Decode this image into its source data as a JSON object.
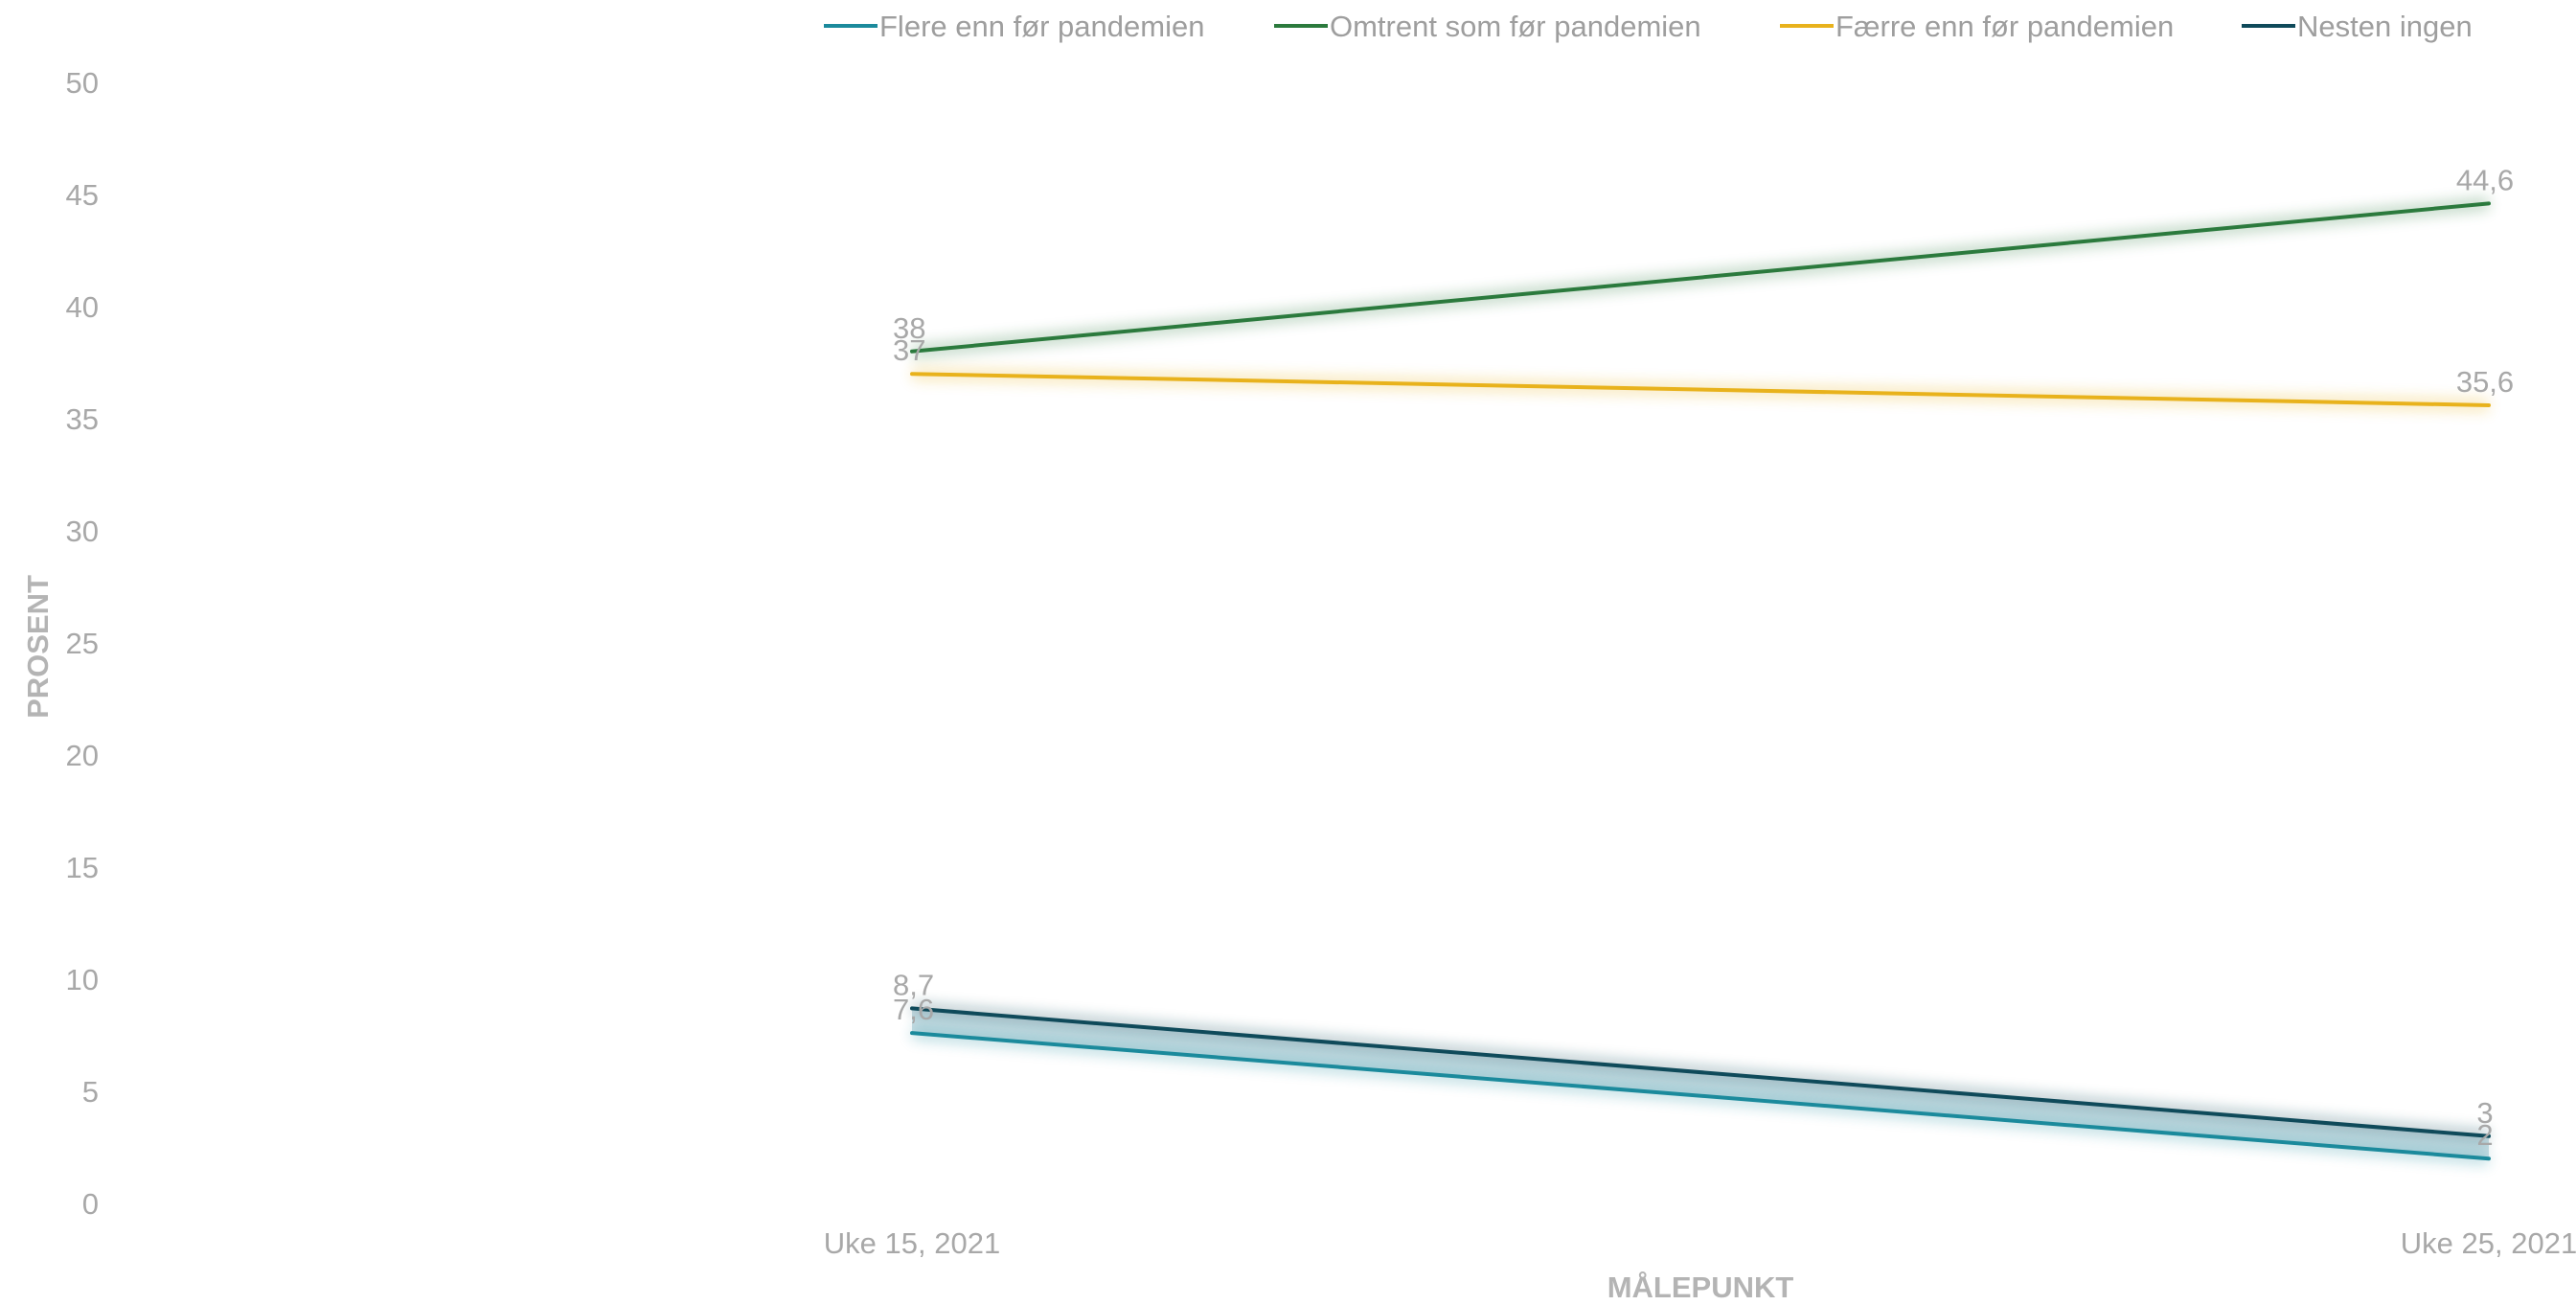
{
  "chart_data": {
    "type": "line",
    "xlabel": "MÅLEPUNKT",
    "ylabel": "PROSENT",
    "categories": [
      "Uke 15, 2021",
      "Uke 25, 2021"
    ],
    "ylim": [
      0,
      50
    ],
    "yticks": [
      "0",
      "5",
      "10",
      "15",
      "20",
      "25",
      "30",
      "35",
      "40",
      "45",
      "50"
    ],
    "grid": false,
    "legend_position": "top",
    "series": [
      {
        "name": "Flere enn før pandemien",
        "values": [
          7.6,
          2
        ],
        "labels": [
          "7,6",
          "2"
        ],
        "color": "#1b8a9c"
      },
      {
        "name": "Omtrent som før pandemien",
        "values": [
          38,
          44.6
        ],
        "labels": [
          "38",
          "44,6"
        ],
        "color": "#2b7a3d"
      },
      {
        "name": "Færre enn før pandemien",
        "values": [
          37,
          35.6
        ],
        "labels": [
          "37",
          "35,6"
        ],
        "color": "#e8b21c"
      },
      {
        "name": "Nesten ingen",
        "values": [
          8.7,
          3
        ],
        "labels": [
          "8,7",
          "3"
        ],
        "color": "#0f4a5a"
      }
    ]
  }
}
